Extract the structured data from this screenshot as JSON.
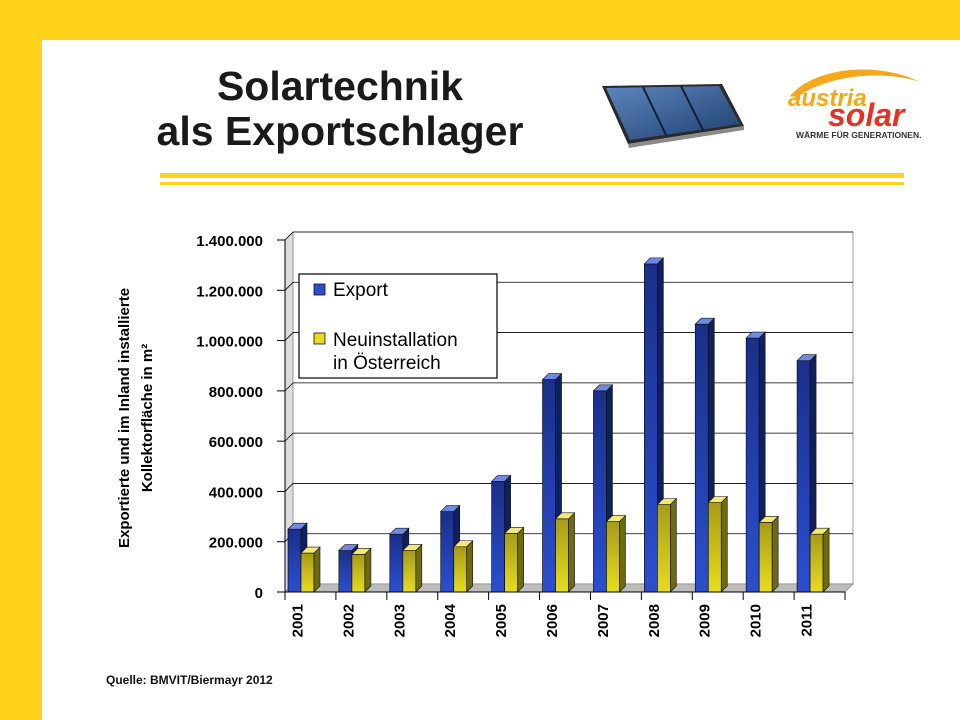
{
  "slide": {
    "title_line1": "Solartechnik",
    "title_line2": "als Exportschlager",
    "source": "Quelle: BMVIT/Biermayr 2012"
  },
  "logo": {
    "word1": "austria",
    "word2": "solar",
    "tagline": "WÄRME FÜR GENERATIONEN."
  },
  "colors": {
    "frame": "#FFD21C",
    "export": "#2B4FD0",
    "neuinstallation": "#E8DC1E"
  },
  "chart_data": {
    "type": "bar",
    "ylabel_line1": "Exportierte und im Inland installierte",
    "ylabel_line2": "Kollektorfläche in m²",
    "categories": [
      "2001",
      "2002",
      "2003",
      "2004",
      "2005",
      "2006",
      "2007",
      "2008",
      "2009",
      "2010",
      "2011"
    ],
    "series": [
      {
        "name": "Export",
        "values": [
          250000,
          165000,
          230000,
          320000,
          440000,
          845000,
          800000,
          1305000,
          1065000,
          1010000,
          920000
        ]
      },
      {
        "name": "Neuinstallation in Österreich",
        "name_line1": "Neuinstallation",
        "name_line2": "in Österreich",
        "values": [
          155000,
          150000,
          165000,
          180000,
          233000,
          291000,
          280000,
          348000,
          356000,
          277000,
          230000
        ]
      }
    ],
    "ylim": [
      0,
      1400000
    ],
    "yticks": [
      "0",
      "200.000",
      "400.000",
      "600.000",
      "800.000",
      "1.000.000",
      "1.200.000",
      "1.400.000"
    ],
    "grid": true,
    "legend_position": "top-left inside plot"
  }
}
